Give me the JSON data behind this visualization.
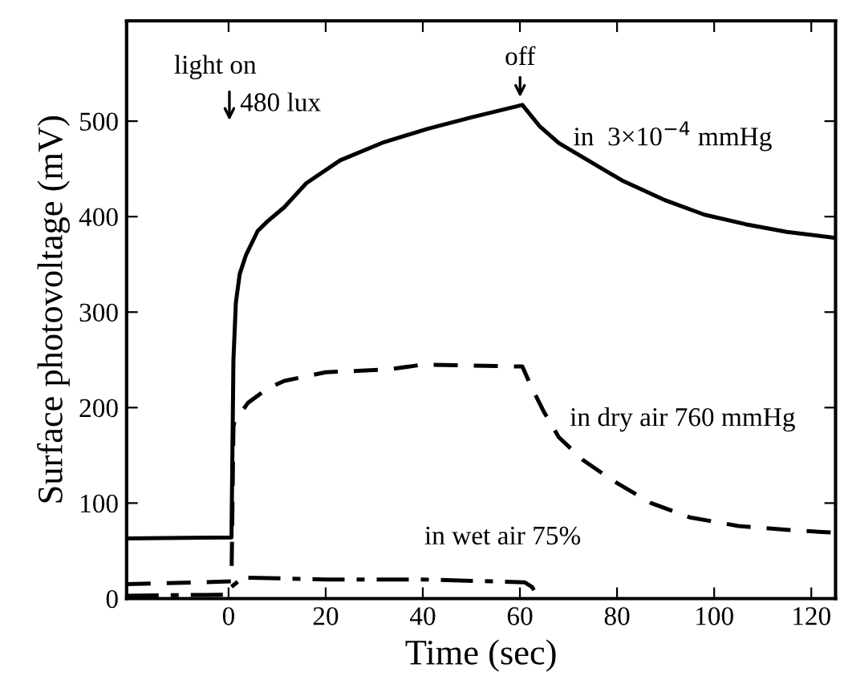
{
  "chart_data": {
    "type": "line",
    "xlabel": "Time (sec)",
    "ylabel": "Surface photovoltage (mV)",
    "xlim": [
      -21,
      125
    ],
    "ylim": [
      0,
      605
    ],
    "xticks": [
      0,
      20,
      40,
      60,
      80,
      100,
      120
    ],
    "yticks": [
      0,
      100,
      200,
      300,
      400,
      500
    ],
    "grid": false,
    "series": [
      {
        "color": "#000000",
        "line_style": "solid",
        "x": [
          -21,
          0.6,
          1,
          1.5,
          2.3,
          3.6,
          6,
          8,
          11.5,
          16,
          23,
          32,
          41,
          50,
          60.5,
          64,
          68,
          74,
          81,
          90,
          98,
          106.5,
          115,
          124.6
        ],
        "values": [
          63,
          64,
          250,
          310,
          340,
          360,
          385,
          395,
          410,
          435,
          459,
          478,
          492,
          504,
          517,
          495,
          477,
          459,
          438,
          417,
          402,
          392,
          384,
          378
        ]
      },
      {
        "color": "#000000",
        "line_style": "dashed",
        "x": [
          -21,
          0.6,
          1,
          1.2,
          4,
          8,
          11.5,
          20,
          33,
          40,
          50,
          60.5,
          62.6,
          65,
          68,
          73,
          79,
          87,
          95,
          105,
          115,
          124.6
        ],
        "values": [
          15,
          18,
          180,
          185,
          205,
          220,
          228,
          237,
          240,
          245,
          244,
          243,
          219,
          195,
          169,
          145,
          124,
          100,
          85,
          76,
          72,
          69
        ]
      },
      {
        "color": "#000000",
        "line_style": "dashdot",
        "x": [
          -21,
          -1,
          0,
          3,
          20,
          40,
          61,
          62.5,
          64
        ],
        "values": [
          3,
          4,
          10,
          22,
          20,
          20,
          17,
          12,
          0
        ]
      }
    ],
    "annotations": [
      "light on",
      "480 lux",
      "off",
      "in  3×10$^{−4}$ mmHg",
      "in dry air 760 mmHg",
      "in wet air 75%"
    ]
  }
}
